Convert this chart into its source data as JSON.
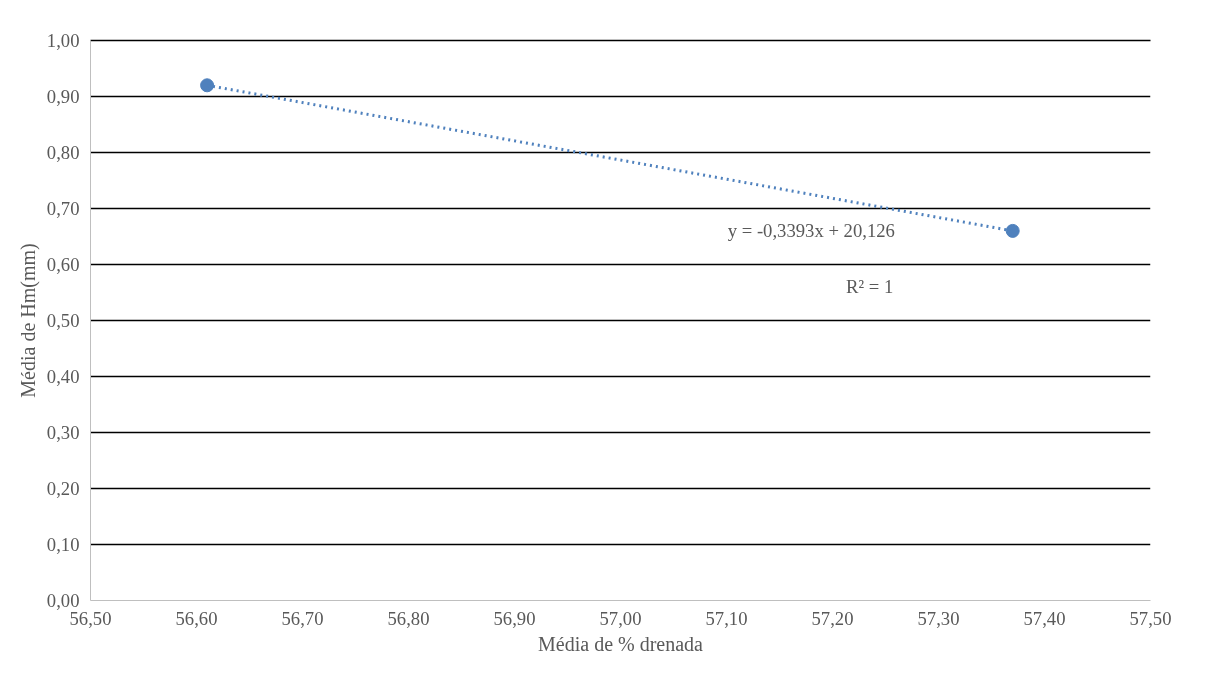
{
  "chart_data": {
    "type": "scatter",
    "xlabel": "Média de % drenada",
    "ylabel": "Média de Hm(mm)",
    "series": [
      {
        "color": "#4f81bd",
        "values": [
          0.92,
          0.66
        ],
        "marker": "circle"
      },
      {
        "type": "line",
        "color": "#4f81bd",
        "values": [
          0.92,
          0.66
        ],
        "line_style": "dotted",
        "marker": "none"
      }
    ],
    "x": [
      56.61,
      57.37
    ],
    "annotations": [
      "y = -0,3393x + 20,126",
      "R² = 1"
    ],
    "xlim": [
      56.5,
      57.5
    ],
    "ylim": [
      0,
      1.0
    ],
    "xticks": [
      {
        "value": 56.5,
        "label": "56,50"
      },
      {
        "value": 56.6,
        "label": "56,60"
      },
      {
        "value": 56.7,
        "label": "56,70"
      },
      {
        "value": 56.8,
        "label": "56,80"
      },
      {
        "value": 56.9,
        "label": "56,90"
      },
      {
        "value": 57.0,
        "label": "57,00"
      },
      {
        "value": 57.1,
        "label": "57,10"
      },
      {
        "value": 57.2,
        "label": "57,20"
      },
      {
        "value": 57.3,
        "label": "57,30"
      },
      {
        "value": 57.4,
        "label": "57,40"
      },
      {
        "value": 57.5,
        "label": "57,50"
      }
    ],
    "yticks": [
      {
        "value": 0,
        "label": "0,00"
      },
      {
        "value": 0.1,
        "label": "0,10"
      },
      {
        "value": 0.2,
        "label": "0,20"
      },
      {
        "value": 0.3,
        "label": "0,30"
      },
      {
        "value": 0.4,
        "label": "0,40"
      },
      {
        "value": 0.5,
        "label": "0,50"
      },
      {
        "value": 0.6,
        "label": "0,60"
      },
      {
        "value": 0.7,
        "label": "0,70"
      },
      {
        "value": 0.8,
        "label": "0,80"
      },
      {
        "value": 0.9,
        "label": "0,90"
      },
      {
        "value": 1.0,
        "label": "1,00"
      }
    ],
    "grid": "y",
    "legend": false
  }
}
